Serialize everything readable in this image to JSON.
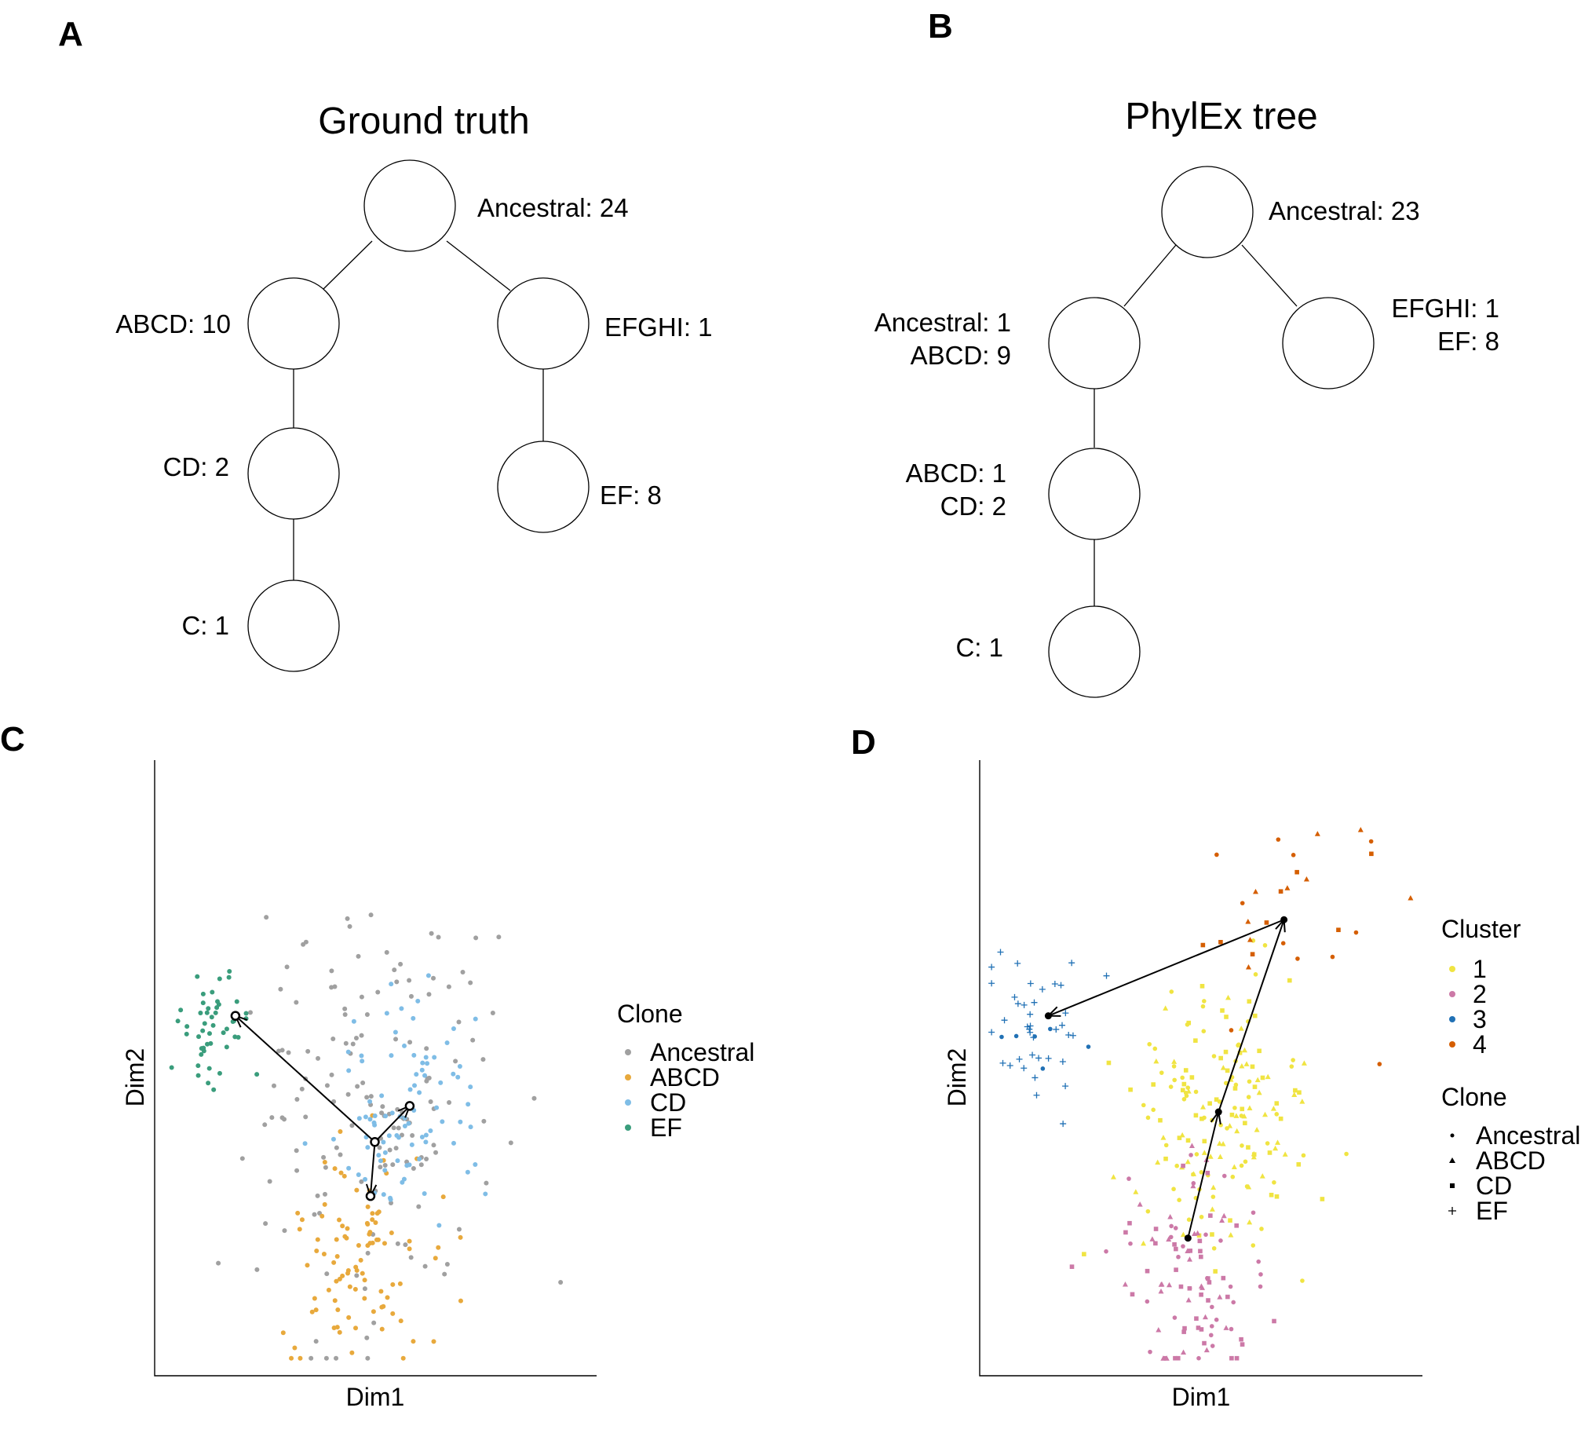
{
  "panels": {
    "A": {
      "letter": "A",
      "title": "Ground truth",
      "nodes": [
        {
          "id": "anc",
          "label": "Ancestral: 24"
        },
        {
          "id": "abcd",
          "label": "ABCD: 10"
        },
        {
          "id": "efghi",
          "label": "EFGHI: 1"
        },
        {
          "id": "cd",
          "label": "CD: 2"
        },
        {
          "id": "ef",
          "label": "EF: 8"
        },
        {
          "id": "c",
          "label": "C: 1"
        }
      ]
    },
    "B": {
      "letter": "B",
      "title": "PhylEx tree",
      "nodes": [
        {
          "id": "anc",
          "label": "Ancestral: 23"
        },
        {
          "id": "n1",
          "label_lines": [
            "Ancestral: 1",
            "ABCD: 9"
          ]
        },
        {
          "id": "n2",
          "label_lines": [
            "EFGHI: 1",
            "EF: 8"
          ]
        },
        {
          "id": "n3",
          "label_lines": [
            "ABCD: 1",
            "CD: 2"
          ]
        },
        {
          "id": "n4",
          "label": "C: 1"
        }
      ]
    },
    "C": {
      "letter": "C",
      "xlabel": "Dim1",
      "ylabel": "Dim2",
      "legend_title": "Clone",
      "legend": [
        {
          "label": "Ancestral",
          "color": "#a0a0a0"
        },
        {
          "label": "ABCD",
          "color": "#e8a93c"
        },
        {
          "label": "CD",
          "color": "#7fbde6"
        },
        {
          "label": "EF",
          "color": "#3a9d7c"
        }
      ]
    },
    "D": {
      "letter": "D",
      "xlabel": "Dim1",
      "ylabel": "Dim2",
      "legend_cluster_title": "Cluster",
      "legend_cluster": [
        {
          "label": "1",
          "color": "#f0e442"
        },
        {
          "label": "2",
          "color": "#cc79a7"
        },
        {
          "label": "3",
          "color": "#2171b5"
        },
        {
          "label": "4",
          "color": "#d55e00"
        }
      ],
      "legend_clone_title": "Clone",
      "legend_clone": [
        {
          "label": "Ancestral",
          "shape": "circle"
        },
        {
          "label": "ABCD",
          "shape": "triangle"
        },
        {
          "label": "CD",
          "shape": "square"
        },
        {
          "label": "EF",
          "shape": "plus"
        }
      ]
    }
  },
  "chart_data": [
    {
      "type": "scatter",
      "panel": "C",
      "xlabel": "Dim1",
      "ylabel": "Dim2",
      "xlim": [
        0,
        100
      ],
      "ylim": [
        0,
        100
      ],
      "series": [
        {
          "name": "Ancestral",
          "color": "#a0a0a0",
          "cluster": {
            "center": [
              49,
              42
            ],
            "sd": [
              14,
              18
            ],
            "n": 150
          }
        },
        {
          "name": "ABCD",
          "color": "#e8a93c",
          "cluster": {
            "center": [
              45,
              19
            ],
            "sd": [
              8,
              10
            ],
            "n": 95
          }
        },
        {
          "name": "CD",
          "color": "#7fbde6",
          "cluster": {
            "center": [
              58,
              43
            ],
            "sd": [
              8,
              9
            ],
            "n": 90
          }
        },
        {
          "name": "EF",
          "color": "#3a9d7c",
          "cluster": {
            "center": [
              14,
              58
            ],
            "sd": [
              5,
              5
            ],
            "n": 48
          }
        }
      ],
      "trajectory": {
        "points": [
          [
            18,
            59
          ],
          [
            50,
            38
          ],
          [
            58,
            44
          ],
          [
            49,
            29
          ]
        ],
        "edges": [
          [
            1,
            0
          ],
          [
            1,
            2
          ],
          [
            1,
            3
          ]
        ]
      }
    },
    {
      "type": "scatter",
      "panel": "D",
      "xlabel": "Dim1",
      "ylabel": "Dim2",
      "xlim": [
        0,
        100
      ],
      "ylim": [
        0,
        100
      ],
      "series": [
        {
          "name": "1",
          "color": "#f0e442",
          "cluster": {
            "center": [
              55,
              40
            ],
            "sd": [
              10,
              11
            ],
            "n": 175
          }
        },
        {
          "name": "2",
          "color": "#cc79a7",
          "cluster": {
            "center": [
              48,
              16
            ],
            "sd": [
              8,
              10
            ],
            "n": 100
          }
        },
        {
          "name": "3",
          "color": "#2171b5",
          "cluster": {
            "center": [
              14,
              56
            ],
            "sd": [
              6,
              6
            ],
            "n": 45
          }
        },
        {
          "name": "4",
          "color": "#d55e00",
          "cluster": {
            "center": [
              70,
              74
            ],
            "sd": [
              12,
              10
            ],
            "n": 28
          }
        }
      ],
      "trajectory": {
        "points": [
          [
            47,
            22
          ],
          [
            54,
            43
          ],
          [
            69,
            75
          ],
          [
            15,
            59
          ]
        ],
        "edges": [
          [
            0,
            1
          ],
          [
            1,
            2
          ],
          [
            2,
            3
          ]
        ]
      }
    }
  ]
}
